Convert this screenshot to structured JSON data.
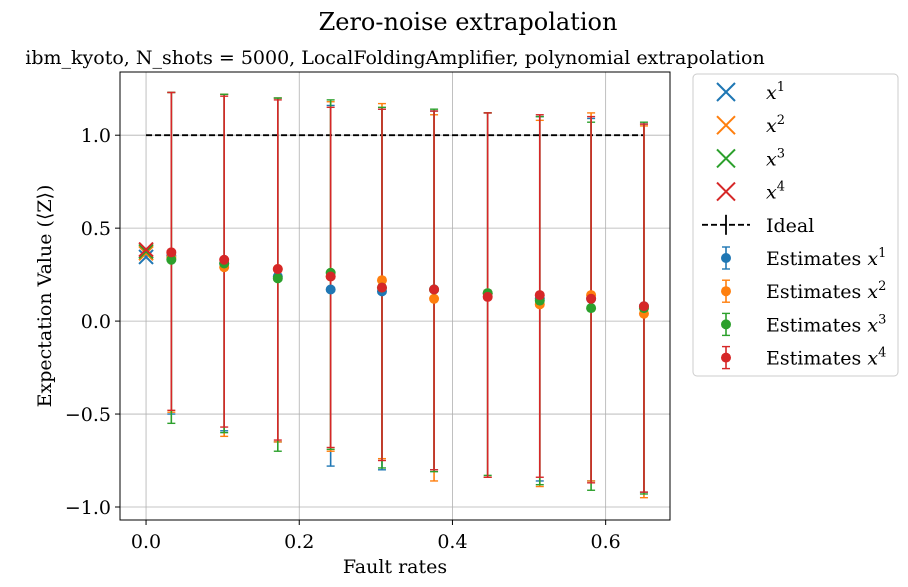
{
  "chart_data": {
    "type": "scatter",
    "title": "Zero-noise extrapolation",
    "subtitle": "ibm_kyoto, N_shots = 5000, LocalFoldingAmplifier, polynomial extrapolation",
    "xlabel": "Fault rates",
    "ylabel": "Expectation Value (⟨Z⟩)",
    "xlim": [
      -0.034,
      0.684
    ],
    "ylim": [
      -1.07,
      1.34
    ],
    "xticks": [
      0.0,
      0.2,
      0.4,
      0.6
    ],
    "xtick_labels": [
      "0.0",
      "0.2",
      "0.4",
      "0.6"
    ],
    "yticks": [
      -1.0,
      -0.5,
      0.0,
      0.5,
      1.0
    ],
    "ytick_labels": [
      "−1.0",
      "−0.5",
      "0.0",
      "0.5",
      "1.0"
    ],
    "grid": true,
    "legend_position": "outside-right",
    "x": [
      0.033,
      0.102,
      0.172,
      0.241,
      0.308,
      0.376,
      0.446,
      0.514,
      0.581,
      0.65
    ],
    "ideal": {
      "name": "Ideal",
      "y": 1.0,
      "x_start": 0.0,
      "x_end": 0.65,
      "color": "#000000"
    },
    "extrapolations": [
      {
        "name": "x",
        "power": "1",
        "x": 0.0,
        "y": 0.345,
        "color": "#1f77b4"
      },
      {
        "name": "x",
        "power": "2",
        "x": 0.0,
        "y": 0.365,
        "color": "#ff7f0e"
      },
      {
        "name": "x",
        "power": "3",
        "x": 0.0,
        "y": 0.375,
        "color": "#2ca02c"
      },
      {
        "name": "x",
        "power": "4",
        "x": 0.0,
        "y": 0.385,
        "color": "#d62728"
      }
    ],
    "series": [
      {
        "name": "Estimates x",
        "power": "1",
        "color": "#1f77b4",
        "values": [
          0.35,
          0.31,
          0.24,
          0.17,
          0.16,
          0.17,
          0.15,
          0.12,
          0.12,
          0.08
        ],
        "err_low": [
          -0.5,
          -0.59,
          -0.65,
          -0.78,
          -0.8,
          -0.8,
          -0.84,
          -0.86,
          -0.86,
          -0.92
        ],
        "err_high": [
          1.23,
          1.22,
          1.2,
          1.16,
          1.14,
          1.13,
          1.12,
          1.1,
          1.09,
          1.06
        ]
      },
      {
        "name": "Estimates x",
        "power": "2",
        "color": "#ff7f0e",
        "values": [
          0.34,
          0.29,
          0.28,
          0.24,
          0.22,
          0.12,
          0.15,
          0.09,
          0.14,
          0.04
        ],
        "err_low": [
          -0.49,
          -0.62,
          -0.65,
          -0.7,
          -0.74,
          -0.86,
          -0.84,
          -0.89,
          -0.86,
          -0.95
        ],
        "err_high": [
          1.23,
          1.22,
          1.2,
          1.18,
          1.17,
          1.11,
          1.12,
          1.08,
          1.12,
          1.05
        ]
      },
      {
        "name": "Estimates x",
        "power": "3",
        "color": "#2ca02c",
        "values": [
          0.33,
          0.31,
          0.23,
          0.26,
          0.18,
          0.17,
          0.15,
          0.11,
          0.07,
          0.07
        ],
        "err_low": [
          -0.55,
          -0.6,
          -0.7,
          -0.69,
          -0.79,
          -0.81,
          -0.83,
          -0.88,
          -0.91,
          -0.93
        ],
        "err_high": [
          1.23,
          1.22,
          1.2,
          1.19,
          1.15,
          1.14,
          1.12,
          1.1,
          1.07,
          1.07
        ]
      },
      {
        "name": "Estimates x",
        "power": "4",
        "color": "#d62728",
        "values": [
          0.37,
          0.33,
          0.28,
          0.24,
          0.18,
          0.17,
          0.13,
          0.14,
          0.12,
          0.08
        ],
        "err_low": [
          -0.48,
          -0.57,
          -0.64,
          -0.68,
          -0.75,
          -0.8,
          -0.84,
          -0.84,
          -0.87,
          -0.92
        ],
        "err_high": [
          1.23,
          1.21,
          1.19,
          1.15,
          1.14,
          1.13,
          1.12,
          1.11,
          1.1,
          1.06
        ]
      }
    ]
  }
}
